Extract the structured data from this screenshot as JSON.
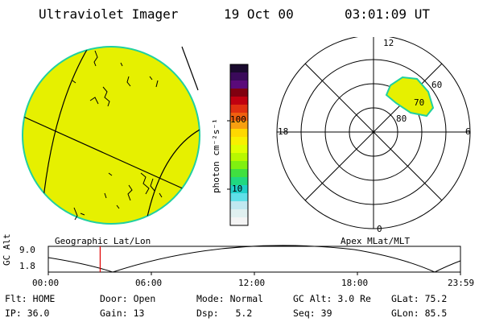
{
  "header": {
    "instrument": "Ultraviolet Imager",
    "date": "19 Oct 00",
    "time": "03:01:09 UT"
  },
  "colorbar": {
    "unit_label": "photon cm⁻²s⁻¹",
    "ticks": [
      "100",
      "10"
    ],
    "colors": [
      "#1a0a2e",
      "#3a0a5a",
      "#5a0a7a",
      "#800010",
      "#c00010",
      "#e03010",
      "#f06010",
      "#f8a010",
      "#ffd800",
      "#f8f000",
      "#e0ff00",
      "#b8f800",
      "#80f010",
      "#40e040",
      "#20d880",
      "#20d0c8",
      "#60e0e8",
      "#c0e8f0",
      "#e0f0f0",
      "#f4f4f4"
    ]
  },
  "polar": {
    "labels": {
      "top": "12",
      "bottom": "0",
      "left": "18",
      "right": "6"
    },
    "latitudes": [
      "60",
      "70",
      "80"
    ]
  },
  "panels": {
    "left_caption": "Geographic Lat/Lon",
    "right_caption": "Apex MLat/MLT"
  },
  "altitude_plot": {
    "ylabel": "GC Alt",
    "yticks": [
      "9.0",
      "1.8"
    ],
    "xticks": [
      "00:00",
      "06:00",
      "12:00",
      "18:00",
      "23:59"
    ],
    "current_time_hours": 3.02
  },
  "status": {
    "flt_label": "Flt:",
    "flt_value": "HOME",
    "ip_label": "IP:",
    "ip_value": "36.0",
    "door_label": "Door:",
    "door_value": "Open",
    "gain_label": "Gain:",
    "gain_value": "13",
    "mode_label": "Mode:",
    "mode_value": "Normal",
    "dsp_label": "Dsp:",
    "dsp_value": "5.2",
    "gcalt_label": "GC Alt:",
    "gcalt_value": "3.0 Re",
    "seq_label": "Seq:",
    "seq_value": "39",
    "glat_label": "GLat:",
    "glat_value": "75.2",
    "glon_label": "GLon:",
    "glon_value": "85.5"
  }
}
